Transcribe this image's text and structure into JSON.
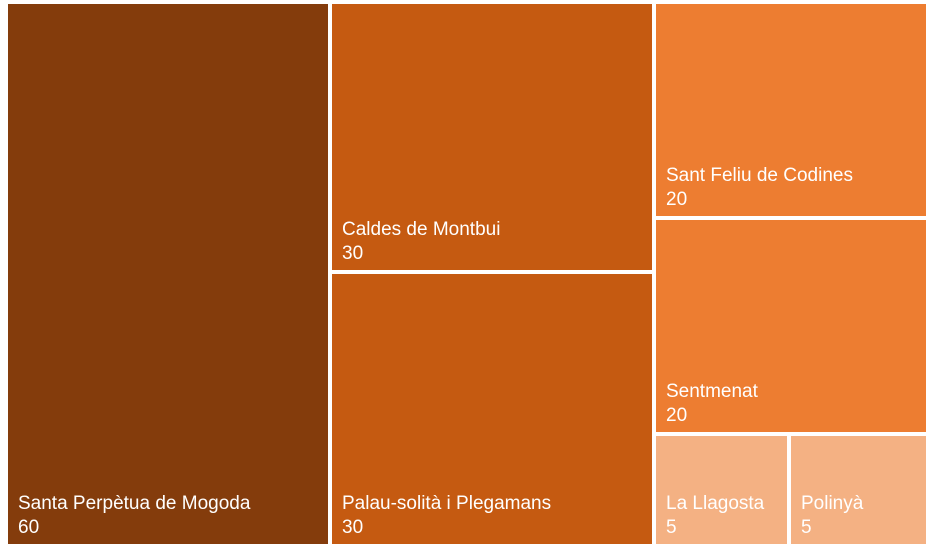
{
  "chart_data": {
    "type": "treemap",
    "categories": [
      "Santa Perpètua de Mogoda",
      "Caldes de Montbui",
      "Palau-solità i Plegamans",
      "Sant Feliu de Codines",
      "Sentmenat",
      "La Llagosta",
      "Polinyà"
    ],
    "values": [
      60,
      30,
      30,
      20,
      20,
      5,
      5
    ],
    "colors": [
      "#843c0c",
      "#c55a11",
      "#c55a11",
      "#ed7d31",
      "#ed7d31",
      "#f4b183",
      "#f4b183"
    ]
  }
}
